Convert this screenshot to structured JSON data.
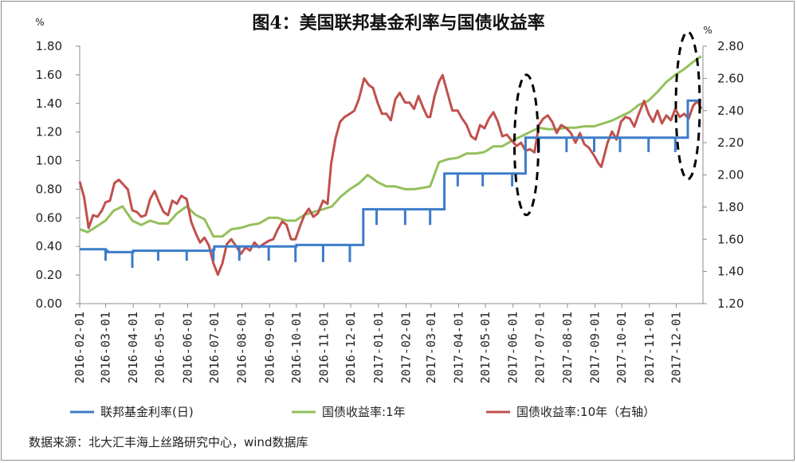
{
  "chart_data": {
    "type": "line",
    "title": "图4：美国联邦基金利率与国债收益率",
    "source": "数据来源：北大汇丰海上丝路研究中心，wind数据库",
    "y_left": {
      "unit": "%",
      "ylim": [
        0,
        1.8
      ],
      "ticks": [
        "0.00",
        "0.20",
        "0.40",
        "0.60",
        "0.80",
        "1.00",
        "1.20",
        "1.40",
        "1.60",
        "1.80"
      ]
    },
    "y_right": {
      "unit": "%",
      "ylim": [
        1.2,
        2.8
      ],
      "ticks": [
        "1.20",
        "1.40",
        "1.60",
        "1.80",
        "2.00",
        "2.20",
        "2.40",
        "2.60",
        "2.80"
      ]
    },
    "x_ticks": [
      "2016-02-01",
      "2016-03-01",
      "2016-04-01",
      "2016-05-01",
      "2016-06-01",
      "2016-07-01",
      "2016-08-01",
      "2016-09-01",
      "2016-10-01",
      "2016-11-01",
      "2016-12-01",
      "2017-01-01",
      "2017-02-01",
      "2017-03-01",
      "2017-04-01",
      "2017-05-01",
      "2017-06-01",
      "2017-07-01",
      "2017-08-01",
      "2017-09-01",
      "2017-10-01",
      "2017-11-01",
      "2017-12-01"
    ],
    "x_range": [
      "2016-02-01",
      "2017-12-31"
    ],
    "grid": false,
    "legend_position": "bottom",
    "series": [
      {
        "name": "联邦基金利率(日)",
        "axis": "left",
        "color": "#3d7cc9",
        "points": [
          [
            "2016-02-01",
            0.38
          ],
          [
            "2016-02-29",
            0.38
          ],
          [
            "2016-03-01",
            0.37
          ],
          [
            "2016-03-03",
            0.36
          ],
          [
            "2016-03-31",
            0.36
          ],
          [
            "2016-04-01",
            0.37
          ],
          [
            "2016-04-26",
            0.37
          ],
          [
            "2016-04-27",
            0.37
          ],
          [
            "2016-05-31",
            0.37
          ],
          [
            "2016-06-30",
            0.38
          ],
          [
            "2016-07-01",
            0.4
          ],
          [
            "2016-08-31",
            0.4
          ],
          [
            "2016-09-30",
            0.4
          ],
          [
            "2016-10-01",
            0.41
          ],
          [
            "2016-11-30",
            0.41
          ],
          [
            "2016-12-14",
            0.41
          ],
          [
            "2016-12-15",
            0.66
          ],
          [
            "2017-01-31",
            0.66
          ],
          [
            "2017-03-15",
            0.66
          ],
          [
            "2017-03-16",
            0.91
          ],
          [
            "2017-04-28",
            0.91
          ],
          [
            "2017-05-31",
            0.91
          ],
          [
            "2017-06-14",
            0.91
          ],
          [
            "2017-06-15",
            1.16
          ],
          [
            "2017-07-31",
            1.16
          ],
          [
            "2017-08-31",
            1.16
          ],
          [
            "2017-09-29",
            1.16
          ],
          [
            "2017-10-31",
            1.16
          ],
          [
            "2017-11-30",
            1.16
          ],
          [
            "2017-12-13",
            1.16
          ],
          [
            "2017-12-14",
            1.42
          ],
          [
            "2017-12-29",
            1.42
          ]
        ],
        "dips": [
          [
            "2016-03-01",
            0.3
          ],
          [
            "2016-03-31",
            0.25
          ],
          [
            "2016-04-29",
            0.3
          ],
          [
            "2016-05-31",
            0.3
          ],
          [
            "2016-06-30",
            0.3
          ],
          [
            "2016-07-29",
            0.3
          ],
          [
            "2016-08-31",
            0.3
          ],
          [
            "2016-09-30",
            0.29
          ],
          [
            "2016-10-31",
            0.29
          ],
          [
            "2016-11-30",
            0.29
          ],
          [
            "2016-12-30",
            0.55
          ],
          [
            "2017-01-31",
            0.55
          ],
          [
            "2017-02-28",
            0.55
          ],
          [
            "2017-03-31",
            0.82
          ],
          [
            "2017-04-28",
            0.82
          ],
          [
            "2017-05-31",
            0.82
          ],
          [
            "2017-06-30",
            1.06
          ],
          [
            "2017-07-31",
            1.06
          ],
          [
            "2017-08-31",
            1.06
          ],
          [
            "2017-09-29",
            1.06
          ],
          [
            "2017-10-31",
            1.06
          ],
          [
            "2017-11-30",
            1.06
          ]
        ]
      },
      {
        "name": "国债收益率:1年",
        "axis": "left",
        "color": "#93c05b",
        "points": [
          [
            "2016-02-01",
            0.52
          ],
          [
            "2016-02-10",
            0.5
          ],
          [
            "2016-02-20",
            0.54
          ],
          [
            "2016-03-01",
            0.58
          ],
          [
            "2016-03-10",
            0.65
          ],
          [
            "2016-03-20",
            0.68
          ],
          [
            "2016-03-31",
            0.58
          ],
          [
            "2016-04-10",
            0.55
          ],
          [
            "2016-04-20",
            0.58
          ],
          [
            "2016-04-30",
            0.56
          ],
          [
            "2016-05-10",
            0.56
          ],
          [
            "2016-05-20",
            0.63
          ],
          [
            "2016-05-31",
            0.68
          ],
          [
            "2016-06-10",
            0.62
          ],
          [
            "2016-06-20",
            0.59
          ],
          [
            "2016-06-30",
            0.47
          ],
          [
            "2016-07-10",
            0.47
          ],
          [
            "2016-07-20",
            0.52
          ],
          [
            "2016-07-31",
            0.53
          ],
          [
            "2016-08-10",
            0.55
          ],
          [
            "2016-08-20",
            0.56
          ],
          [
            "2016-08-31",
            0.6
          ],
          [
            "2016-09-10",
            0.6
          ],
          [
            "2016-09-20",
            0.58
          ],
          [
            "2016-09-30",
            0.58
          ],
          [
            "2016-10-10",
            0.62
          ],
          [
            "2016-10-20",
            0.64
          ],
          [
            "2016-10-31",
            0.66
          ],
          [
            "2016-11-10",
            0.68
          ],
          [
            "2016-11-20",
            0.75
          ],
          [
            "2016-11-30",
            0.8
          ],
          [
            "2016-12-10",
            0.84
          ],
          [
            "2016-12-20",
            0.9
          ],
          [
            "2016-12-31",
            0.85
          ],
          [
            "2017-01-10",
            0.82
          ],
          [
            "2017-01-20",
            0.82
          ],
          [
            "2017-01-31",
            0.8
          ],
          [
            "2017-02-10",
            0.8
          ],
          [
            "2017-02-20",
            0.81
          ],
          [
            "2017-02-28",
            0.82
          ],
          [
            "2017-03-10",
            0.99
          ],
          [
            "2017-03-20",
            1.01
          ],
          [
            "2017-03-31",
            1.02
          ],
          [
            "2017-04-10",
            1.05
          ],
          [
            "2017-04-20",
            1.05
          ],
          [
            "2017-04-30",
            1.06
          ],
          [
            "2017-05-10",
            1.1
          ],
          [
            "2017-05-20",
            1.1
          ],
          [
            "2017-05-31",
            1.14
          ],
          [
            "2017-06-10",
            1.17
          ],
          [
            "2017-06-20",
            1.2
          ],
          [
            "2017-06-30",
            1.23
          ],
          [
            "2017-07-10",
            1.22
          ],
          [
            "2017-07-20",
            1.22
          ],
          [
            "2017-07-31",
            1.23
          ],
          [
            "2017-08-10",
            1.23
          ],
          [
            "2017-08-20",
            1.24
          ],
          [
            "2017-08-31",
            1.24
          ],
          [
            "2017-09-10",
            1.26
          ],
          [
            "2017-09-20",
            1.28
          ],
          [
            "2017-09-30",
            1.31
          ],
          [
            "2017-10-10",
            1.34
          ],
          [
            "2017-10-20",
            1.39
          ],
          [
            "2017-10-31",
            1.42
          ],
          [
            "2017-11-10",
            1.48
          ],
          [
            "2017-11-20",
            1.55
          ],
          [
            "2017-11-30",
            1.6
          ],
          [
            "2017-12-10",
            1.64
          ],
          [
            "2017-12-20",
            1.69
          ],
          [
            "2017-12-29",
            1.73
          ]
        ]
      },
      {
        "name": "国债收益率:10年（右轴）",
        "axis": "right",
        "color": "#c0504d",
        "points": [
          [
            "2016-02-01",
            1.96
          ],
          [
            "2016-02-06",
            1.86
          ],
          [
            "2016-02-11",
            1.67
          ],
          [
            "2016-02-16",
            1.75
          ],
          [
            "2016-02-21",
            1.74
          ],
          [
            "2016-02-26",
            1.78
          ],
          [
            "2016-03-01",
            1.83
          ],
          [
            "2016-03-06",
            1.84
          ],
          [
            "2016-03-11",
            1.95
          ],
          [
            "2016-03-16",
            1.97
          ],
          [
            "2016-03-21",
            1.94
          ],
          [
            "2016-03-26",
            1.91
          ],
          [
            "2016-03-31",
            1.78
          ],
          [
            "2016-04-05",
            1.77
          ],
          [
            "2016-04-10",
            1.74
          ],
          [
            "2016-04-15",
            1.75
          ],
          [
            "2016-04-20",
            1.85
          ],
          [
            "2016-04-25",
            1.9
          ],
          [
            "2016-04-30",
            1.83
          ],
          [
            "2016-05-05",
            1.77
          ],
          [
            "2016-05-10",
            1.75
          ],
          [
            "2016-05-15",
            1.84
          ],
          [
            "2016-05-20",
            1.82
          ],
          [
            "2016-05-25",
            1.87
          ],
          [
            "2016-05-31",
            1.85
          ],
          [
            "2016-06-05",
            1.71
          ],
          [
            "2016-06-10",
            1.64
          ],
          [
            "2016-06-15",
            1.58
          ],
          [
            "2016-06-20",
            1.61
          ],
          [
            "2016-06-25",
            1.56
          ],
          [
            "2016-06-30",
            1.45
          ],
          [
            "2016-07-05",
            1.38
          ],
          [
            "2016-07-10",
            1.45
          ],
          [
            "2016-07-15",
            1.57
          ],
          [
            "2016-07-20",
            1.6
          ],
          [
            "2016-07-25",
            1.56
          ],
          [
            "2016-07-31",
            1.51
          ],
          [
            "2016-08-05",
            1.55
          ],
          [
            "2016-08-10",
            1.53
          ],
          [
            "2016-08-15",
            1.58
          ],
          [
            "2016-08-20",
            1.55
          ],
          [
            "2016-08-25",
            1.57
          ],
          [
            "2016-08-31",
            1.59
          ],
          [
            "2016-09-05",
            1.6
          ],
          [
            "2016-09-10",
            1.66
          ],
          [
            "2016-09-15",
            1.71
          ],
          [
            "2016-09-20",
            1.69
          ],
          [
            "2016-09-25",
            1.6
          ],
          [
            "2016-09-30",
            1.6
          ],
          [
            "2016-10-05",
            1.68
          ],
          [
            "2016-10-10",
            1.75
          ],
          [
            "2016-10-15",
            1.79
          ],
          [
            "2016-10-20",
            1.74
          ],
          [
            "2016-10-25",
            1.76
          ],
          [
            "2016-10-31",
            1.84
          ],
          [
            "2016-11-05",
            1.82
          ],
          [
            "2016-11-09",
            2.07
          ],
          [
            "2016-11-14",
            2.23
          ],
          [
            "2016-11-19",
            2.33
          ],
          [
            "2016-11-24",
            2.36
          ],
          [
            "2016-11-30",
            2.38
          ],
          [
            "2016-12-05",
            2.4
          ],
          [
            "2016-12-10",
            2.47
          ],
          [
            "2016-12-16",
            2.6
          ],
          [
            "2016-12-21",
            2.56
          ],
          [
            "2016-12-26",
            2.54
          ],
          [
            "2016-12-31",
            2.45
          ],
          [
            "2017-01-05",
            2.38
          ],
          [
            "2017-01-10",
            2.38
          ],
          [
            "2017-01-15",
            2.34
          ],
          [
            "2017-01-20",
            2.47
          ],
          [
            "2017-01-25",
            2.51
          ],
          [
            "2017-01-31",
            2.45
          ],
          [
            "2017-02-05",
            2.45
          ],
          [
            "2017-02-10",
            2.41
          ],
          [
            "2017-02-15",
            2.49
          ],
          [
            "2017-02-20",
            2.42
          ],
          [
            "2017-02-25",
            2.36
          ],
          [
            "2017-02-28",
            2.36
          ],
          [
            "2017-03-05",
            2.49
          ],
          [
            "2017-03-10",
            2.58
          ],
          [
            "2017-03-14",
            2.62
          ],
          [
            "2017-03-20",
            2.5
          ],
          [
            "2017-03-25",
            2.4
          ],
          [
            "2017-03-31",
            2.4
          ],
          [
            "2017-04-05",
            2.35
          ],
          [
            "2017-04-10",
            2.31
          ],
          [
            "2017-04-15",
            2.24
          ],
          [
            "2017-04-20",
            2.22
          ],
          [
            "2017-04-25",
            2.31
          ],
          [
            "2017-04-30",
            2.29
          ],
          [
            "2017-05-05",
            2.35
          ],
          [
            "2017-05-10",
            2.39
          ],
          [
            "2017-05-15",
            2.33
          ],
          [
            "2017-05-20",
            2.24
          ],
          [
            "2017-05-25",
            2.25
          ],
          [
            "2017-05-31",
            2.21
          ],
          [
            "2017-06-05",
            2.18
          ],
          [
            "2017-06-10",
            2.2
          ],
          [
            "2017-06-15",
            2.15
          ],
          [
            "2017-06-20",
            2.16
          ],
          [
            "2017-06-25",
            2.14
          ],
          [
            "2017-06-30",
            2.31
          ],
          [
            "2017-07-05",
            2.35
          ],
          [
            "2017-07-10",
            2.37
          ],
          [
            "2017-07-15",
            2.33
          ],
          [
            "2017-07-20",
            2.26
          ],
          [
            "2017-07-25",
            2.31
          ],
          [
            "2017-07-31",
            2.29
          ],
          [
            "2017-08-05",
            2.26
          ],
          [
            "2017-08-10",
            2.2
          ],
          [
            "2017-08-15",
            2.26
          ],
          [
            "2017-08-20",
            2.19
          ],
          [
            "2017-08-25",
            2.17
          ],
          [
            "2017-08-31",
            2.12
          ],
          [
            "2017-09-05",
            2.07
          ],
          [
            "2017-09-08",
            2.05
          ],
          [
            "2017-09-15",
            2.2
          ],
          [
            "2017-09-20",
            2.27
          ],
          [
            "2017-09-25",
            2.22
          ],
          [
            "2017-09-30",
            2.33
          ],
          [
            "2017-10-05",
            2.36
          ],
          [
            "2017-10-10",
            2.35
          ],
          [
            "2017-10-15",
            2.3
          ],
          [
            "2017-10-20",
            2.38
          ],
          [
            "2017-10-26",
            2.46
          ],
          [
            "2017-10-31",
            2.38
          ],
          [
            "2017-11-05",
            2.33
          ],
          [
            "2017-11-10",
            2.4
          ],
          [
            "2017-11-15",
            2.32
          ],
          [
            "2017-11-20",
            2.37
          ],
          [
            "2017-11-25",
            2.34
          ],
          [
            "2017-11-30",
            2.41
          ],
          [
            "2017-12-05",
            2.36
          ],
          [
            "2017-12-10",
            2.38
          ],
          [
            "2017-12-15",
            2.35
          ],
          [
            "2017-12-20",
            2.43
          ],
          [
            "2017-12-25",
            2.46
          ],
          [
            "2017-12-29",
            2.41
          ]
        ]
      }
    ],
    "annotations": [
      {
        "type": "dashed-ellipse",
        "center_date": "2017-06-16",
        "y_top": 1.6,
        "y_bottom": 0.62
      },
      {
        "type": "dashed-ellipse",
        "center_date": "2017-12-14",
        "y_top": 1.9,
        "y_bottom": 0.87
      }
    ]
  }
}
